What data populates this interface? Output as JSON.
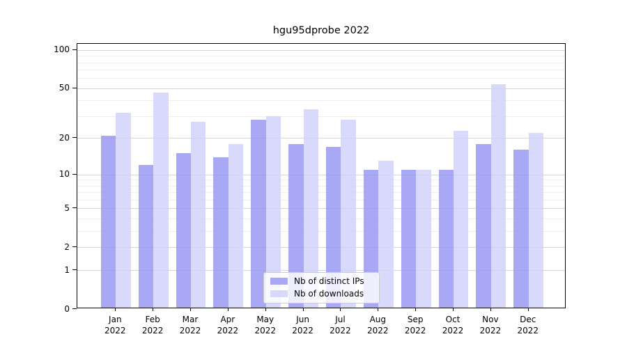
{
  "chart_data": {
    "type": "bar",
    "title": "hgu95dprobe 2022",
    "year_label": "2022",
    "categories": [
      "Jan",
      "Feb",
      "Mar",
      "Apr",
      "May",
      "Jun",
      "Jul",
      "Aug",
      "Sep",
      "Oct",
      "Nov",
      "Dec"
    ],
    "series": [
      {
        "name": "Nb of distinct IPs",
        "color": "rgba(146,146,243,0.8)",
        "values": [
          21,
          12,
          15,
          14,
          28,
          18,
          17,
          11,
          11,
          11,
          18,
          16
        ]
      },
      {
        "name": "Nb of downloads",
        "color": "rgba(208,208,250,0.8)",
        "values": [
          32,
          46,
          27,
          18,
          30,
          34,
          28,
          13,
          11,
          23,
          54,
          22
        ]
      }
    ],
    "yscale": "log1p",
    "yticks": [
      0,
      1,
      2,
      5,
      10,
      20,
      50,
      100
    ],
    "minor_yticks": [
      3,
      4,
      6,
      7,
      8,
      9,
      30,
      40,
      60,
      70,
      80,
      90
    ],
    "ylim": [
      0,
      110
    ],
    "grid": true,
    "legend_position": "bottom-center",
    "xlabel": "",
    "ylabel": ""
  },
  "colors": {
    "background": "#ffffff",
    "spine": "#000000",
    "major_grid": "#d6d6d6",
    "minor_grid": "#efefef",
    "text": "#000000"
  }
}
